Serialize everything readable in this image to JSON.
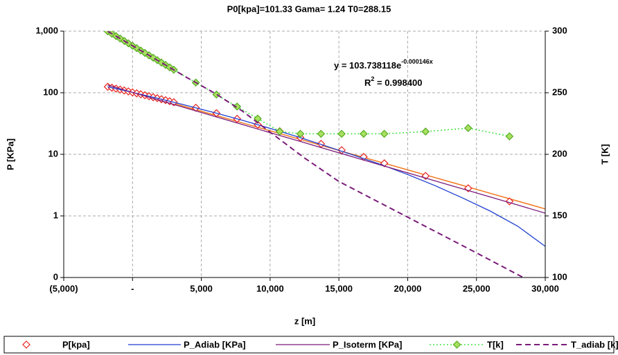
{
  "chart_data": {
    "type": "line",
    "title": "P0[kpa]=101.33    Gama= 1.24  T0=288.15",
    "x_label": "z [m]",
    "y_label": "P [KPa]",
    "y2_label": "T [K]",
    "annotation": {
      "equation": "y = 103.738118e",
      "exponent": "-0.000146x",
      "r": "R",
      "r_power": "2",
      "r_value": " = 0.998400",
      "color": "#f07820"
    },
    "xlim": [
      -5000,
      30000
    ],
    "xticks": [
      {
        "value": -5000,
        "label": "(5,000)"
      },
      {
        "value": 0,
        "label": "-"
      },
      {
        "value": 5000,
        "label": "5,000"
      },
      {
        "value": 10000,
        "label": "10,000"
      },
      {
        "value": 15000,
        "label": "15,000"
      },
      {
        "value": 20000,
        "label": "20,000"
      },
      {
        "value": 25000,
        "label": "25,000"
      },
      {
        "value": 30000,
        "label": "30,000"
      }
    ],
    "ylim": [
      0.1,
      1000
    ],
    "y_log": true,
    "yticks": [
      {
        "value": 0.1,
        "label": "0"
      },
      1,
      10,
      100,
      {
        "value": 1000,
        "label": "1,000"
      }
    ],
    "y2lim": [
      100,
      300
    ],
    "y2ticks": [
      100,
      150,
      200,
      250,
      300
    ],
    "grid": true,
    "legend": "bottom",
    "series": [
      {
        "name": "P[kpa]",
        "color": "#e8201a",
        "marker": "diamond",
        "line": "none",
        "axis": "y",
        "x": [
          -1800,
          -1500,
          -1200,
          -900,
          -600,
          -300,
          0,
          300,
          600,
          900,
          1200,
          1500,
          1800,
          2100,
          2400,
          2700,
          3000,
          4600,
          6100,
          7600,
          9100,
          10700,
          12200,
          13700,
          15200,
          16800,
          18300,
          21300,
          24400,
          27400
        ],
        "values": [
          124.9,
          120.7,
          116.6,
          112.6,
          108.7,
          105.0,
          101.33,
          97.8,
          94.3,
          91.0,
          87.7,
          84.6,
          81.5,
          78.5,
          75.6,
          72.8,
          70.1,
          57.0,
          46.5,
          37.7,
          30.3,
          23.7,
          18.74,
          14.79,
          11.68,
          9.07,
          7.16,
          4.46,
          2.81,
          1.72
        ]
      },
      {
        "name": "P_Adiab [KPa]",
        "color": "#1f3fd0",
        "marker": "none",
        "line": "solid",
        "axis": "y",
        "x": [
          -1800,
          0,
          2000,
          4000,
          6000,
          8000,
          10000,
          12000,
          14000,
          16000,
          18000,
          20000,
          22000,
          24000,
          26000,
          28000,
          30000
        ],
        "values": [
          124.9,
          101.33,
          79.5,
          61.6,
          47.2,
          35.6,
          26.4,
          19.3,
          13.8,
          9.8,
          6.9,
          4.7,
          3.1,
          1.95,
          1.2,
          0.68,
          0.32
        ]
      },
      {
        "name": "P_Isoterm [KPa]",
        "color": "#7a1a7a",
        "marker": "none",
        "line": "solid",
        "axis": "y",
        "x": [
          -1800,
          0,
          2000,
          4000,
          6000,
          8000,
          10000,
          12000,
          14000,
          16000,
          18000,
          20000,
          22000,
          24000,
          26000,
          28000,
          30000
        ],
        "values": [
          132.9,
          101.33,
          75.0,
          55.5,
          41.1,
          30.4,
          22.5,
          16.7,
          12.3,
          9.12,
          6.75,
          5.0,
          3.7,
          2.74,
          2.03,
          1.5,
          1.11
        ]
      },
      {
        "name": "T[k]",
        "color": "#22dd22",
        "marker_fill": "#a8e060",
        "marker": "diamond",
        "line": "dotted",
        "axis": "y2",
        "x": [
          -1800,
          -1500,
          -1200,
          -900,
          -600,
          -300,
          0,
          300,
          600,
          900,
          1200,
          1500,
          1800,
          2100,
          2400,
          2700,
          3000,
          4600,
          6100,
          7600,
          9100,
          10700,
          12200,
          13700,
          15200,
          16800,
          18300,
          21300,
          24400,
          27400
        ],
        "values": [
          299.85,
          297.9,
          295.95,
          294.0,
          292.05,
          290.1,
          288.15,
          286.2,
          284.25,
          282.3,
          280.35,
          278.4,
          276.45,
          274.5,
          272.55,
          270.6,
          268.65,
          258.25,
          248.5,
          238.75,
          229.0,
          218.6,
          216.65,
          216.65,
          216.65,
          216.65,
          216.65,
          218.5,
          221.3,
          214.6
        ]
      },
      {
        "name": "T_adiab [k]",
        "color": "#7a1a7a",
        "marker": "none",
        "line": "dashed",
        "axis": "y2",
        "x": [
          -1800,
          0,
          2000,
          4000,
          6000,
          8000,
          10000,
          12500,
          15000,
          20000,
          25000,
          28400,
          30000
        ],
        "values": [
          299.85,
          288.15,
          275.1,
          262,
          249.5,
          235,
          218,
          197,
          178,
          149,
          120,
          100,
          91
        ]
      }
    ],
    "trendline": {
      "color": "#f07820",
      "x": [
        -1800,
        0,
        2000,
        4000,
        6000,
        8000,
        10000,
        12000,
        14000,
        16000,
        18000,
        20000,
        22000,
        24000,
        26000,
        28000,
        30000
      ],
      "values": [
        134.9,
        103.7,
        77.5,
        57.9,
        43.2,
        32.3,
        24.1,
        18.0,
        13.4,
        10.0,
        7.49,
        5.59,
        4.18,
        3.12,
        2.33,
        1.74,
        1.3
      ]
    }
  }
}
